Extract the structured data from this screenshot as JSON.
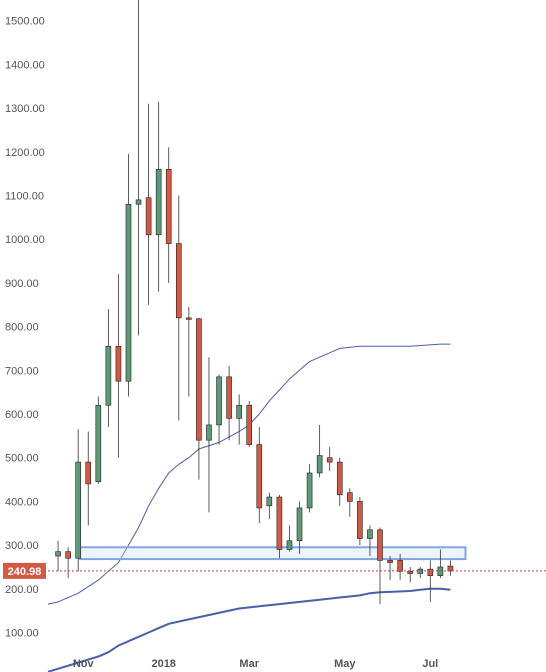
{
  "chart_data": {
    "type": "candlestick",
    "y_axis": {
      "min": 50,
      "max": 1550,
      "ticks": [
        "100.00",
        "200.00",
        "300.00",
        "400.00",
        "500.00",
        "600.00",
        "700.00",
        "800.00",
        "900.00",
        "1000.00",
        "1100.00",
        "1200.00",
        "1300.00",
        "1400.00",
        "1500.00"
      ]
    },
    "x_axis": {
      "index_min": -1.0,
      "index_max": 48.5,
      "labels": [
        {
          "text": "Nov",
          "index": 2.5
        },
        {
          "text": "2018",
          "index": 10.5
        },
        {
          "text": "Mar",
          "index": 19.0
        },
        {
          "text": "May",
          "index": 28.5
        },
        {
          "text": "Jul",
          "index": 37.0
        }
      ]
    },
    "candles": [
      {
        "o": 275,
        "h": 310,
        "l": 240,
        "c": 285
      },
      {
        "o": 285,
        "h": 295,
        "l": 225,
        "c": 270
      },
      {
        "o": 270,
        "h": 565,
        "l": 240,
        "c": 490
      },
      {
        "o": 490,
        "h": 560,
        "l": 345,
        "c": 440
      },
      {
        "o": 445,
        "h": 640,
        "l": 440,
        "c": 620
      },
      {
        "o": 620,
        "h": 840,
        "l": 570,
        "c": 755
      },
      {
        "o": 755,
        "h": 920,
        "l": 500,
        "c": 675
      },
      {
        "o": 675,
        "h": 1195,
        "l": 640,
        "c": 1080
      },
      {
        "o": 1080,
        "h": 1550,
        "l": 780,
        "c": 1090
      },
      {
        "o": 1095,
        "h": 1310,
        "l": 850,
        "c": 1010
      },
      {
        "o": 1010,
        "h": 1315,
        "l": 880,
        "c": 1160
      },
      {
        "o": 1160,
        "h": 1210,
        "l": 900,
        "c": 990
      },
      {
        "o": 990,
        "h": 1100,
        "l": 585,
        "c": 820
      },
      {
        "o": 820,
        "h": 845,
        "l": 640,
        "c": 818
      },
      {
        "o": 818,
        "h": 820,
        "l": 450,
        "c": 540
      },
      {
        "o": 540,
        "h": 730,
        "l": 375,
        "c": 575
      },
      {
        "o": 575,
        "h": 690,
        "l": 530,
        "c": 685
      },
      {
        "o": 685,
        "h": 710,
        "l": 540,
        "c": 590
      },
      {
        "o": 590,
        "h": 645,
        "l": 530,
        "c": 620
      },
      {
        "o": 620,
        "h": 630,
        "l": 525,
        "c": 530
      },
      {
        "o": 530,
        "h": 570,
        "l": 350,
        "c": 385
      },
      {
        "o": 390,
        "h": 420,
        "l": 360,
        "c": 410
      },
      {
        "o": 410,
        "h": 415,
        "l": 270,
        "c": 290
      },
      {
        "o": 290,
        "h": 345,
        "l": 285,
        "c": 310
      },
      {
        "o": 310,
        "h": 400,
        "l": 280,
        "c": 385
      },
      {
        "o": 385,
        "h": 485,
        "l": 375,
        "c": 465
      },
      {
        "o": 465,
        "h": 575,
        "l": 455,
        "c": 505
      },
      {
        "o": 500,
        "h": 525,
        "l": 470,
        "c": 490
      },
      {
        "o": 490,
        "h": 500,
        "l": 390,
        "c": 415
      },
      {
        "o": 420,
        "h": 430,
        "l": 365,
        "c": 400
      },
      {
        "o": 400,
        "h": 410,
        "l": 300,
        "c": 315
      },
      {
        "o": 315,
        "h": 345,
        "l": 275,
        "c": 335
      },
      {
        "o": 335,
        "h": 340,
        "l": 165,
        "c": 265
      },
      {
        "o": 265,
        "h": 275,
        "l": 220,
        "c": 260
      },
      {
        "o": 265,
        "h": 280,
        "l": 220,
        "c": 240
      },
      {
        "o": 240,
        "h": 250,
        "l": 215,
        "c": 235
      },
      {
        "o": 235,
        "h": 250,
        "l": 225,
        "c": 245
      },
      {
        "o": 245,
        "h": 265,
        "l": 170,
        "c": 230
      },
      {
        "o": 230,
        "h": 290,
        "l": 225,
        "c": 250
      },
      {
        "o": 252,
        "h": 265,
        "l": 230,
        "c": 241
      }
    ],
    "moving_averages": [
      {
        "color": "#4a5fa8",
        "width": 1,
        "points": [
          [
            -1,
            165
          ],
          [
            0,
            170
          ],
          [
            2,
            190
          ],
          [
            4,
            220
          ],
          [
            6,
            260
          ],
          [
            7,
            300
          ],
          [
            8,
            340
          ],
          [
            9,
            390
          ],
          [
            10,
            430
          ],
          [
            11,
            465
          ],
          [
            12,
            485
          ],
          [
            13,
            500
          ],
          [
            14,
            520
          ],
          [
            16,
            535
          ],
          [
            18,
            560
          ],
          [
            19,
            575
          ],
          [
            20,
            600
          ],
          [
            21,
            630
          ],
          [
            22,
            655
          ],
          [
            23,
            680
          ],
          [
            24,
            700
          ],
          [
            25,
            720
          ],
          [
            26,
            730
          ],
          [
            27,
            740
          ],
          [
            28,
            750
          ],
          [
            30,
            755
          ],
          [
            32,
            755
          ],
          [
            35,
            755
          ],
          [
            38,
            760
          ],
          [
            39,
            760
          ]
        ]
      },
      {
        "color": "#4a5fa8",
        "width": 2,
        "points": [
          [
            -1,
            10
          ],
          [
            4,
            45
          ],
          [
            5,
            55
          ],
          [
            6,
            70
          ],
          [
            7,
            80
          ],
          [
            9,
            100
          ],
          [
            10,
            110
          ],
          [
            11,
            120
          ],
          [
            13,
            130
          ],
          [
            15,
            140
          ],
          [
            17,
            150
          ],
          [
            18,
            155
          ],
          [
            20,
            160
          ],
          [
            22,
            165
          ],
          [
            24,
            170
          ],
          [
            26,
            175
          ],
          [
            28,
            180
          ],
          [
            30,
            185
          ],
          [
            31,
            190
          ],
          [
            32,
            192
          ],
          [
            33,
            193
          ],
          [
            35,
            195
          ],
          [
            36,
            198
          ],
          [
            37,
            200
          ],
          [
            38,
            200
          ],
          [
            39,
            198
          ]
        ]
      }
    ],
    "zone": {
      "low": 268,
      "high": 295,
      "from_index": 2.2,
      "to_index": 40.5
    },
    "current_price": {
      "value": 240.98,
      "label": "240.98"
    }
  }
}
